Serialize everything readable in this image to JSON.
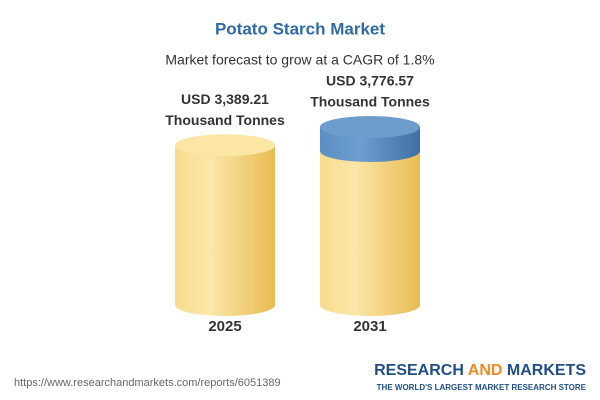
{
  "chart_data": {
    "type": "cylinder",
    "title": "Potato Starch Market",
    "subtitle": "Market forecast to grow at a CAGR of 1.8%",
    "categories": [
      "2025",
      "2031"
    ],
    "values": [
      3389.21,
      3776.57
    ],
    "value_labels": [
      [
        "USD 3,389.21",
        "Thousand Tonnes"
      ],
      [
        "USD 3,776.57",
        "Thousand Tonnes"
      ]
    ],
    "color": "#f2cc6a",
    "highlight_color": "#4f82b8"
  },
  "footer": {
    "url": "https://www.researchandmarkets.com/reports/6051389",
    "brand": [
      "RESEARCH",
      "AND",
      "MARKETS"
    ],
    "tagline": "THE WORLD'S LARGEST MARKET RESEARCH STORE"
  }
}
